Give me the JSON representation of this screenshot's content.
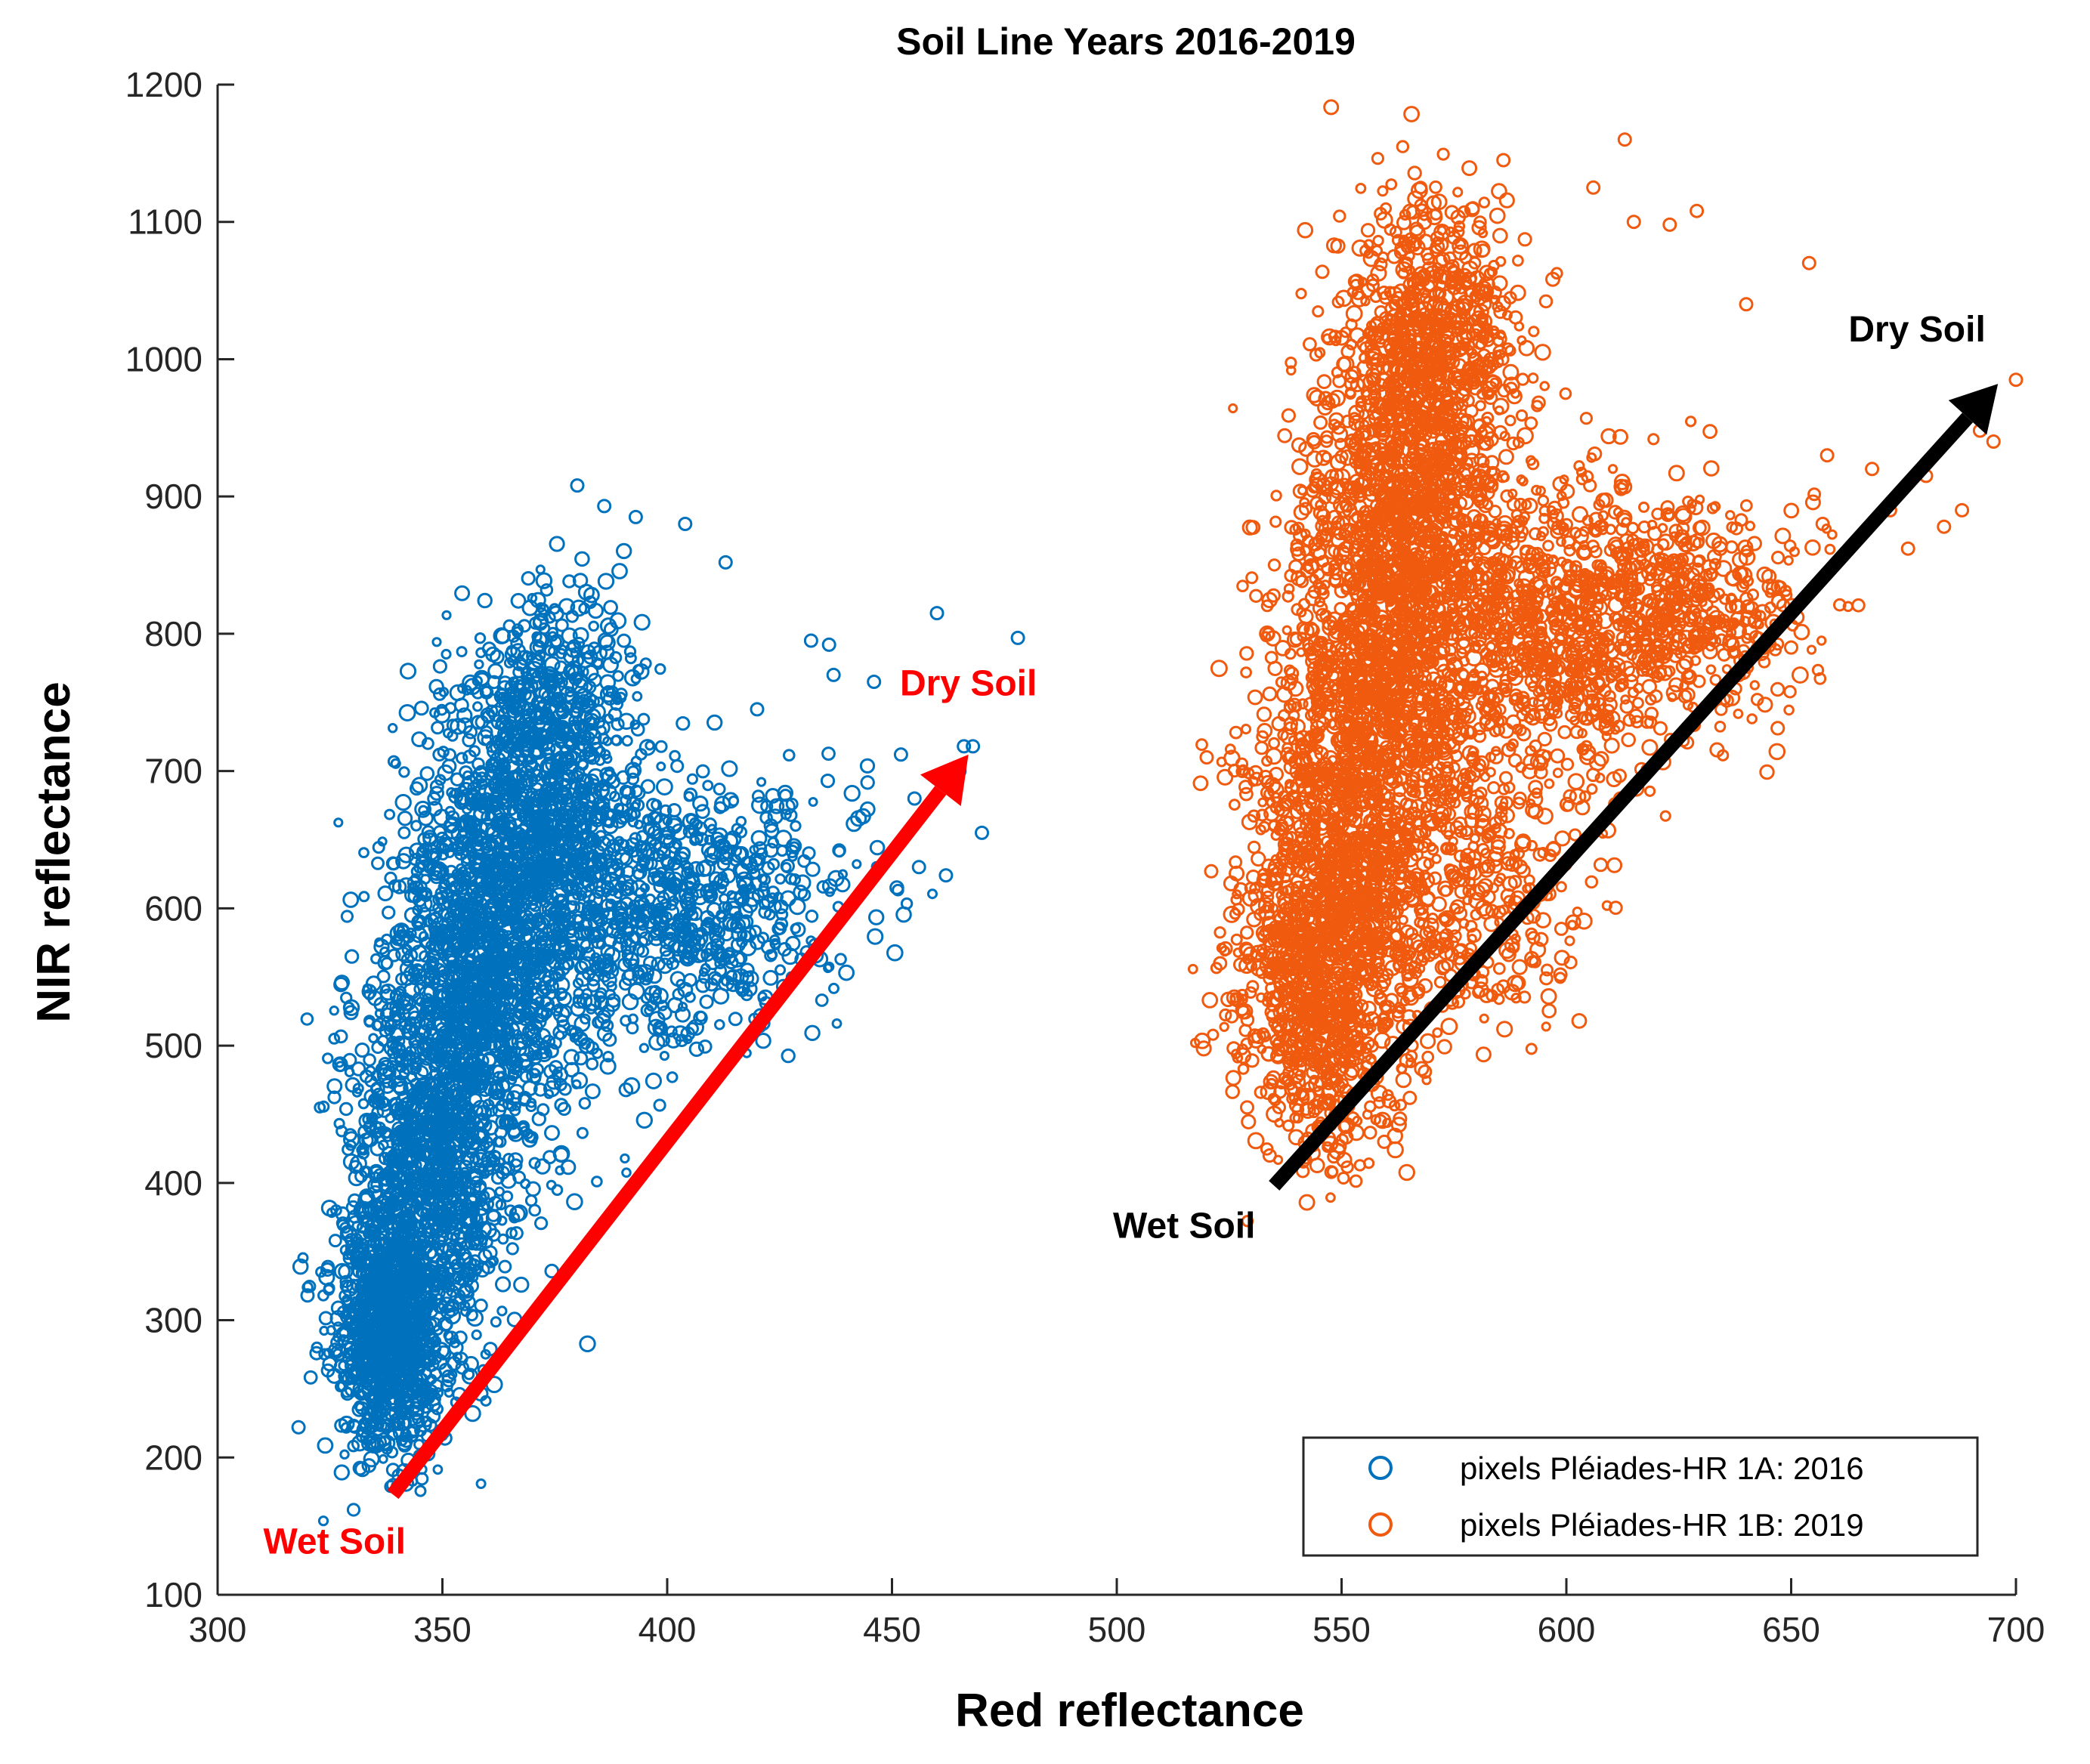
{
  "chart_data": {
    "type": "scatter",
    "title": "Soil Line Years 2016-2019",
    "xlabel": "Red reflectance",
    "ylabel": "NIR reflectance",
    "xlim": [
      300,
      700
    ],
    "ylim": [
      100,
      1200
    ],
    "x_ticks": [
      300,
      350,
      400,
      450,
      500,
      550,
      600,
      650,
      700
    ],
    "y_ticks": [
      100,
      200,
      300,
      400,
      500,
      600,
      700,
      800,
      900,
      1000,
      1100,
      1200
    ],
    "grid": false,
    "legend_position": "bottom-right",
    "series": [
      {
        "name": "pixels Pléiades-HR 1A: 2016",
        "color": "#0072BD",
        "marker": "circle-open",
        "clusters": [
          {
            "cx": 338,
            "cy": 290,
            "sx": 6,
            "sy": 45,
            "n": 900
          },
          {
            "cx": 346,
            "cy": 400,
            "sx": 8,
            "sy": 70,
            "n": 1000
          },
          {
            "cx": 356,
            "cy": 520,
            "sx": 10,
            "sy": 75,
            "n": 1000
          },
          {
            "cx": 366,
            "cy": 630,
            "sx": 11,
            "sy": 70,
            "n": 900
          },
          {
            "cx": 374,
            "cy": 730,
            "sx": 10,
            "sy": 50,
            "n": 500
          },
          {
            "cx": 390,
            "cy": 600,
            "sx": 14,
            "sy": 55,
            "n": 500
          },
          {
            "cx": 408,
            "cy": 600,
            "sx": 12,
            "sy": 40,
            "n": 250
          },
          {
            "cx": 425,
            "cy": 630,
            "sx": 14,
            "sy": 45,
            "n": 100
          }
        ],
        "outliers": [
          [
            380,
            908
          ],
          [
            386,
            893
          ],
          [
            393,
            885
          ],
          [
            404,
            880
          ],
          [
            413,
            852
          ],
          [
            420,
            745
          ],
          [
            432,
            795
          ],
          [
            436,
            792
          ],
          [
            437,
            770
          ],
          [
            446,
            765
          ],
          [
            452,
            712
          ],
          [
            460,
            815
          ],
          [
            466,
            718
          ],
          [
            468,
            718
          ],
          [
            478,
            797
          ],
          [
            456,
            630
          ],
          [
            462,
            624
          ],
          [
            470,
            655
          ],
          [
            465,
            700
          ],
          [
            455,
            680
          ],
          [
            320,
            318
          ],
          [
            322,
            276
          ],
          [
            318,
            222
          ],
          [
            345,
            257
          ],
          [
            348,
            230
          ]
        ]
      },
      {
        "name": "pixels Pléiades-HR 1B: 2019",
        "color": "#F05A0F",
        "marker": "circle-open",
        "clusters": [
          {
            "cx": 545,
            "cy": 540,
            "sx": 9,
            "sy": 60,
            "n": 800
          },
          {
            "cx": 552,
            "cy": 650,
            "sx": 11,
            "sy": 80,
            "n": 1000
          },
          {
            "cx": 560,
            "cy": 780,
            "sx": 12,
            "sy": 80,
            "n": 1000
          },
          {
            "cx": 566,
            "cy": 900,
            "sx": 11,
            "sy": 70,
            "n": 900
          },
          {
            "cx": 570,
            "cy": 1020,
            "sx": 10,
            "sy": 50,
            "n": 600
          },
          {
            "cx": 595,
            "cy": 800,
            "sx": 15,
            "sy": 55,
            "n": 700
          },
          {
            "cx": 625,
            "cy": 820,
            "sx": 15,
            "sy": 40,
            "n": 500
          },
          {
            "cx": 580,
            "cy": 620,
            "sx": 14,
            "sy": 60,
            "n": 300
          }
        ],
        "outliers": [
          [
            613,
            1160
          ],
          [
            586,
            1145
          ],
          [
            606,
            1125
          ],
          [
            615,
            1100
          ],
          [
            623,
            1098
          ],
          [
            629,
            1108
          ],
          [
            640,
            1040
          ],
          [
            654,
            1070
          ],
          [
            658,
            930
          ],
          [
            668,
            920
          ],
          [
            672,
            890
          ],
          [
            676,
            862
          ],
          [
            680,
            915
          ],
          [
            684,
            878
          ],
          [
            688,
            890
          ],
          [
            692,
            948
          ],
          [
            695,
            940
          ],
          [
            700,
            985
          ],
          [
            657,
            880
          ],
          [
            650,
            790
          ],
          [
            521,
            627
          ],
          [
            523,
            560
          ],
          [
            526,
            498
          ],
          [
            529,
            455
          ],
          [
            534,
            420
          ],
          [
            520,
            710
          ],
          [
            586,
            543
          ],
          [
            612,
            680
          ]
        ]
      }
    ],
    "annotations": [
      {
        "text": "Dry Soil",
        "color": "#FF0000",
        "x_at": 467,
        "y_at": 755
      },
      {
        "text": "Wet Soil",
        "color": "#FF0000",
        "x_at": 326,
        "y_at": 130
      },
      {
        "text": "Dry Soil",
        "color": "#000000",
        "x_at": 678,
        "y_at": 1013
      },
      {
        "text": "Wet Soil",
        "color": "#000000",
        "x_at": 515,
        "y_at": 360
      }
    ],
    "arrows": [
      {
        "name": "arrow-2016",
        "color": "#FF0000",
        "from": [
          339,
          173
        ],
        "to": [
          467,
          712
        ]
      },
      {
        "name": "arrow-2019",
        "color": "#000000",
        "from": [
          535,
          398
        ],
        "to": [
          696,
          982
        ]
      }
    ]
  }
}
